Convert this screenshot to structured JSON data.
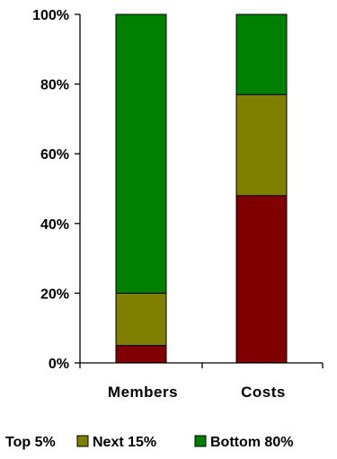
{
  "chart_data": {
    "type": "bar",
    "stacked": true,
    "percent": true,
    "categories": [
      "Members",
      "Costs"
    ],
    "series": [
      {
        "name": "Top 5%",
        "color": "#800000",
        "values": [
          5,
          48
        ]
      },
      {
        "name": "Next 15%",
        "color": "#808000",
        "values": [
          15,
          29
        ]
      },
      {
        "name": "Bottom 80%",
        "color": "#008000",
        "values": [
          80,
          23
        ]
      }
    ],
    "ylim": [
      0,
      100
    ],
    "yticks": [
      0,
      20,
      40,
      60,
      80,
      100
    ],
    "ytick_labels": [
      "0%",
      "20%",
      "40%",
      "60%",
      "80%",
      "100%"
    ],
    "title": "",
    "xlabel": "",
    "ylabel": "",
    "grid": false,
    "legend_position": "bottom"
  }
}
